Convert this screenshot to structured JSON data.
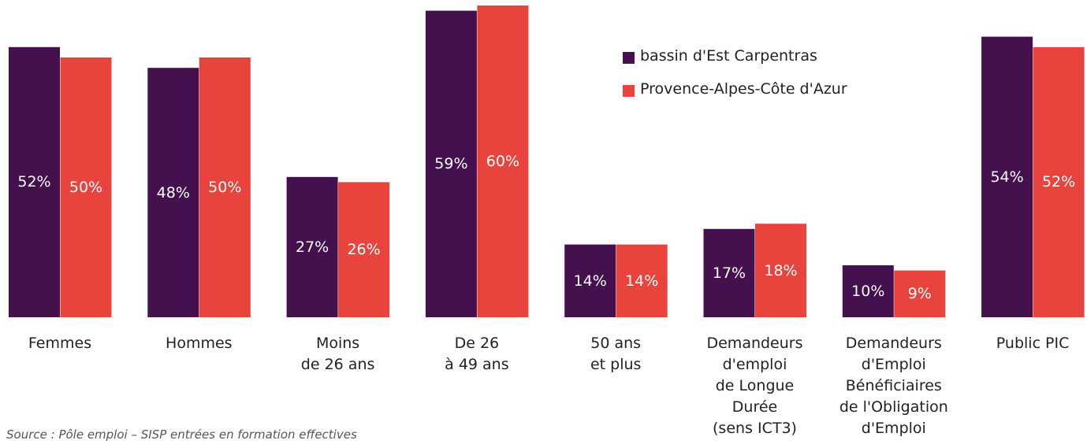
{
  "chart_data": {
    "type": "bar",
    "categories": [
      "Femmes",
      "Hommes",
      "Moins\nde 26 ans",
      "De 26\nà 49 ans",
      "50 ans\net plus",
      "Demandeurs\nd'emploi\nde Longue\nDurée\n(sens ICT3)",
      "Demandeurs\nd'Emploi\nBénéficiaires\nde l'Obligation\nd'Emploi",
      "Public PIC"
    ],
    "series": [
      {
        "name": "bassin d'Est Carpentras",
        "color": "#44114e",
        "values": [
          52,
          48,
          27,
          59,
          14,
          17,
          10,
          54
        ],
        "value_labels": [
          "52%",
          "48%",
          "27%",
          "59%",
          "14%",
          "17%",
          "10%",
          "54%"
        ]
      },
      {
        "name": "Provence-Alpes-Côte d'Azur",
        "color": "#e8433d",
        "values": [
          50,
          50,
          26,
          60,
          14,
          18,
          9,
          52
        ],
        "value_labels": [
          "50%",
          "50%",
          "26%",
          "60%",
          "14%",
          "18%",
          "9%",
          "52%"
        ]
      }
    ],
    "source": "Source : Pôle emploi – SISP entrées en formation effectives"
  }
}
